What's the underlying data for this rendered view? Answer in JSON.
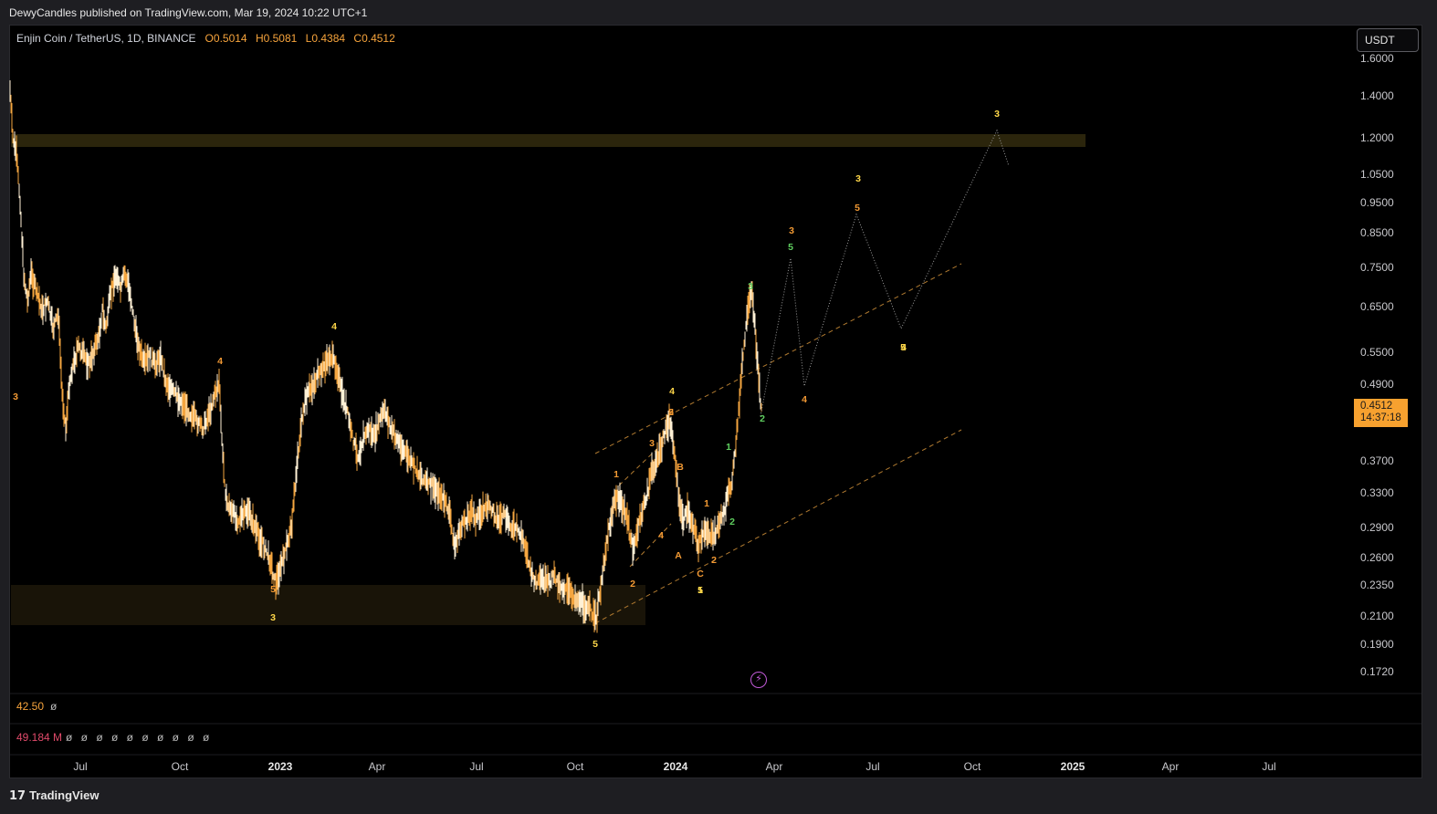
{
  "header": {
    "publisher": "DewyCandles published on TradingView.com, Mar 19, 2024 10:22 UTC+1"
  },
  "symbol": {
    "name": "Enjin Coin / TetherUS, 1D, BINANCE",
    "open_label": "O",
    "open": "0.5014",
    "high_label": "H",
    "high": "0.5081",
    "low_label": "L",
    "low": "0.4384",
    "close_label": "C",
    "close": "0.4512"
  },
  "currency_button": "USDT",
  "price_axis": [
    "1.6000",
    "1.4000",
    "1.2000",
    "1.0500",
    "0.9500",
    "0.8500",
    "0.7500",
    "0.6500",
    "0.5500",
    "0.4900",
    "0.3700",
    "0.3300",
    "0.2900",
    "0.2600",
    "0.2350",
    "0.2100",
    "0.1900",
    "0.1720"
  ],
  "last_price": {
    "value": "0.4512",
    "countdown": "14:37:18"
  },
  "time_axis": [
    {
      "label": "Jul",
      "bold": false
    },
    {
      "label": "Oct",
      "bold": false
    },
    {
      "label": "2023",
      "bold": true
    },
    {
      "label": "Apr",
      "bold": false
    },
    {
      "label": "Jul",
      "bold": false
    },
    {
      "label": "Oct",
      "bold": false
    },
    {
      "label": "2024",
      "bold": true
    },
    {
      "label": "Apr",
      "bold": false
    },
    {
      "label": "Jul",
      "bold": false
    },
    {
      "label": "Oct",
      "bold": false
    },
    {
      "label": "2025",
      "bold": true
    },
    {
      "label": "Apr",
      "bold": false
    },
    {
      "label": "Jul",
      "bold": false
    }
  ],
  "rsi": {
    "value": "42.50",
    "extra": "ø"
  },
  "volume": {
    "value": "49.184 M",
    "extra": "ø ø ø ø ø ø ø ø ø ø"
  },
  "wave_labels": [
    "3",
    "4",
    "5",
    "3",
    "4",
    "5",
    "1",
    "2",
    "3",
    "4",
    "5",
    "A",
    "B",
    "C",
    "1",
    "2",
    "3",
    "4",
    "5",
    "1",
    "2",
    "3",
    "4",
    "5",
    "3",
    "5",
    "3",
    "4",
    "5",
    "1",
    "2",
    "2"
  ],
  "footer": {
    "brand": "TradingView",
    "brand_icon": "tv-logo-icon"
  },
  "colors": {
    "candle": "#f5a640",
    "candle_light": "#fff1d6",
    "accent": "#f7a12f",
    "wave_yellow": "#ffd84a",
    "wave_orange": "#f39a34",
    "wave_green": "#5fcf5f"
  }
}
